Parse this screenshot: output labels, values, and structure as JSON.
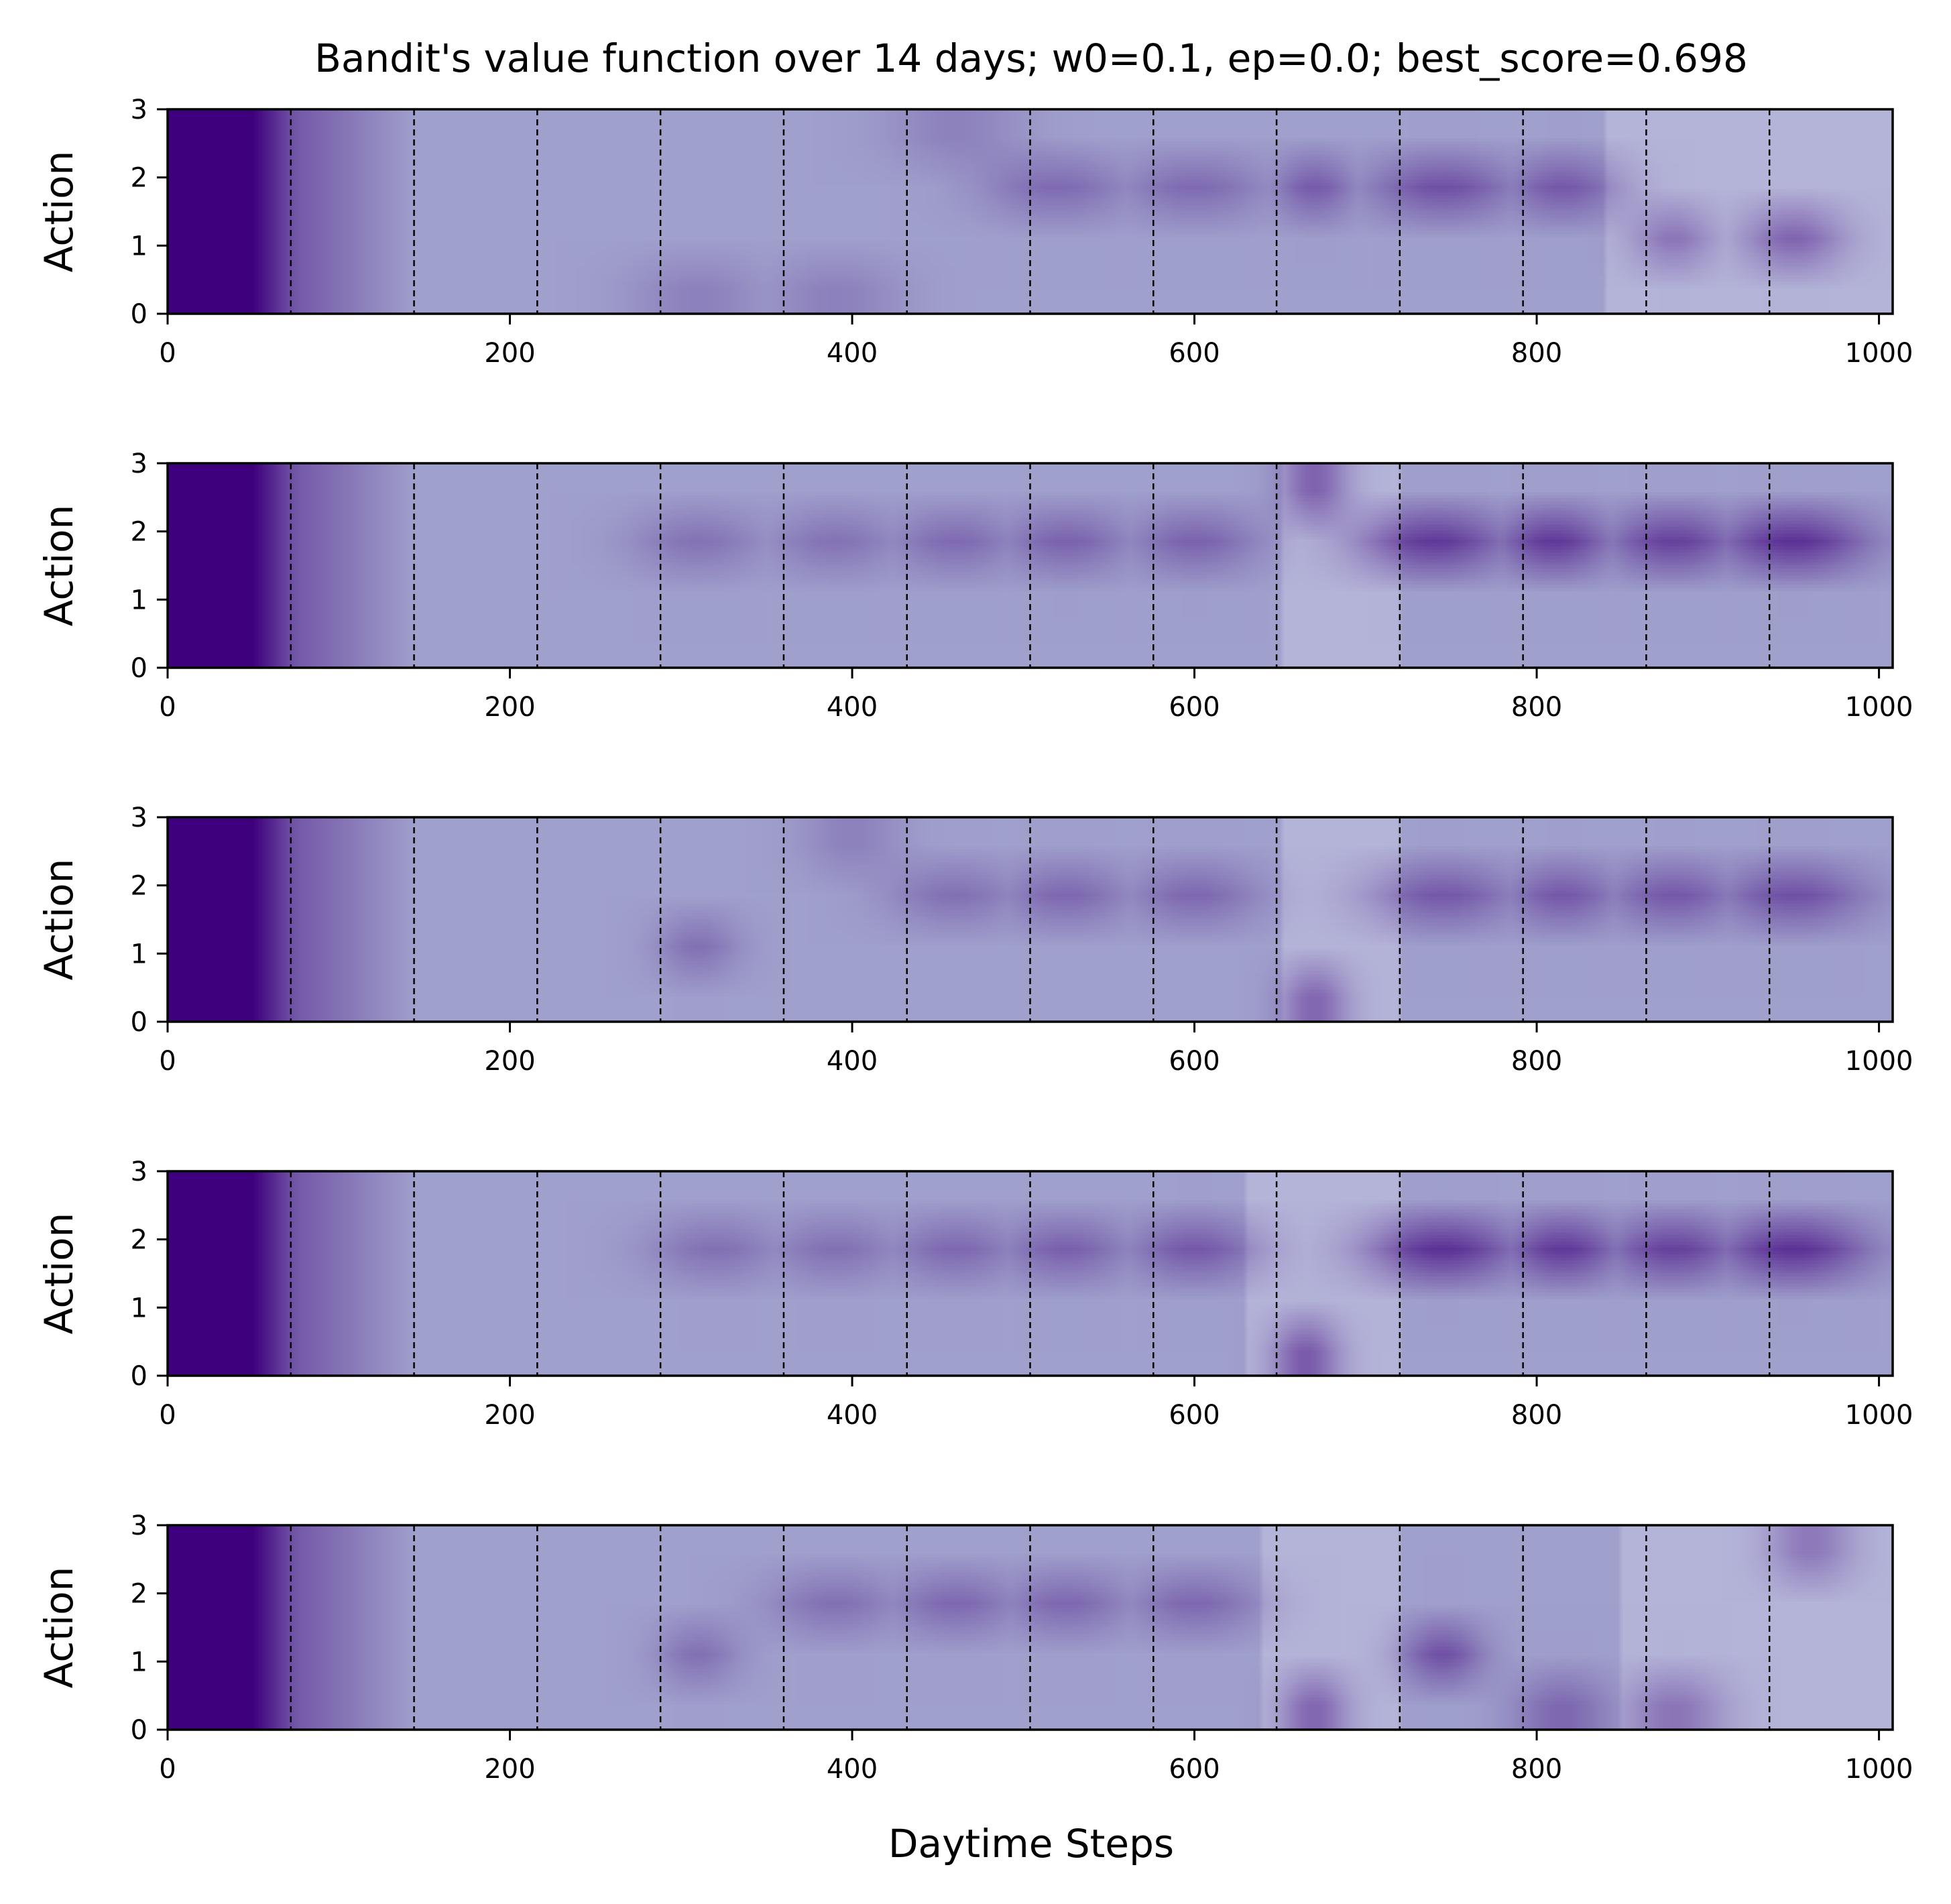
{
  "chart_data": {
    "type": "heatmap",
    "title": "Bandit's value function over 14 days; w0=0.1, ep=0.0; best_score=0.698",
    "xlabel": "Daytime Steps",
    "ylabel": "Action",
    "xlim": [
      0,
      1008
    ],
    "ylim": [
      0,
      3
    ],
    "xticks": [
      0,
      200,
      400,
      600,
      800,
      1000
    ],
    "yticks": [
      0,
      1,
      2,
      3
    ],
    "day_boundaries": [
      72,
      144,
      216,
      288,
      360,
      432,
      504,
      576,
      648,
      720,
      792,
      864,
      936
    ],
    "colormap": "Purples",
    "colors": {
      "dark": "#3f007d",
      "base": "#a0a0cc",
      "light": "#b4b4d8",
      "boundary": "#000000"
    },
    "panels": [
      {
        "name": "panel-1",
        "blobs": [
          [
            520,
            1.8,
            45,
            0.35,
            0.35
          ],
          [
            600,
            1.8,
            45,
            0.35,
            0.35
          ],
          [
            670,
            1.8,
            25,
            0.35,
            0.45
          ],
          [
            745,
            1.85,
            45,
            0.35,
            0.5
          ],
          [
            815,
            1.85,
            35,
            0.35,
            0.45
          ],
          [
            880,
            1.1,
            25,
            0.35,
            0.35
          ],
          [
            950,
            1.1,
            30,
            0.35,
            0.45
          ],
          [
            310,
            0.3,
            40,
            0.4,
            0.2
          ],
          [
            390,
            0.3,
            40,
            0.4,
            0.2
          ],
          [
            460,
            2.7,
            40,
            0.3,
            0.2
          ]
        ],
        "light_regions": [
          [
            840,
            1008
          ]
        ]
      },
      {
        "name": "panel-2",
        "blobs": [
          [
            310,
            1.8,
            40,
            0.35,
            0.3
          ],
          [
            390,
            1.8,
            40,
            0.35,
            0.3
          ],
          [
            460,
            1.8,
            40,
            0.35,
            0.35
          ],
          [
            525,
            1.8,
            40,
            0.35,
            0.4
          ],
          [
            600,
            1.8,
            40,
            0.35,
            0.4
          ],
          [
            670,
            2.6,
            20,
            0.35,
            0.45
          ],
          [
            740,
            1.85,
            45,
            0.35,
            0.65
          ],
          [
            810,
            1.85,
            35,
            0.35,
            0.65
          ],
          [
            880,
            1.85,
            40,
            0.35,
            0.6
          ],
          [
            950,
            1.85,
            45,
            0.35,
            0.7
          ]
        ],
        "light_regions": [
          [
            650,
            720
          ]
        ]
      },
      {
        "name": "panel-3",
        "blobs": [
          [
            460,
            1.9,
            40,
            0.35,
            0.3
          ],
          [
            525,
            1.9,
            40,
            0.35,
            0.35
          ],
          [
            600,
            1.9,
            40,
            0.35,
            0.35
          ],
          [
            310,
            1.1,
            25,
            0.35,
            0.3
          ],
          [
            670,
            0.3,
            20,
            0.35,
            0.45
          ],
          [
            745,
            1.85,
            45,
            0.35,
            0.45
          ],
          [
            815,
            1.85,
            35,
            0.35,
            0.45
          ],
          [
            880,
            1.85,
            40,
            0.35,
            0.45
          ],
          [
            950,
            1.85,
            45,
            0.35,
            0.5
          ],
          [
            400,
            2.7,
            30,
            0.3,
            0.2
          ]
        ],
        "light_regions": [
          [
            650,
            720
          ]
        ]
      },
      {
        "name": "panel-4",
        "blobs": [
          [
            320,
            1.85,
            40,
            0.35,
            0.3
          ],
          [
            390,
            1.85,
            40,
            0.35,
            0.3
          ],
          [
            460,
            1.85,
            40,
            0.35,
            0.35
          ],
          [
            525,
            1.85,
            40,
            0.35,
            0.4
          ],
          [
            600,
            1.85,
            40,
            0.35,
            0.45
          ],
          [
            665,
            0.4,
            20,
            0.35,
            0.5
          ],
          [
            745,
            1.85,
            45,
            0.35,
            0.7
          ],
          [
            815,
            1.85,
            35,
            0.35,
            0.65
          ],
          [
            880,
            1.85,
            40,
            0.35,
            0.6
          ],
          [
            950,
            1.85,
            45,
            0.35,
            0.7
          ]
        ],
        "light_regions": [
          [
            630,
            720
          ]
        ]
      },
      {
        "name": "panel-5",
        "blobs": [
          [
            390,
            1.85,
            40,
            0.35,
            0.3
          ],
          [
            460,
            1.85,
            40,
            0.35,
            0.35
          ],
          [
            525,
            1.85,
            40,
            0.35,
            0.35
          ],
          [
            600,
            1.85,
            40,
            0.35,
            0.35
          ],
          [
            310,
            1.1,
            25,
            0.35,
            0.3
          ],
          [
            670,
            0.3,
            20,
            0.35,
            0.45
          ],
          [
            745,
            1.1,
            25,
            0.35,
            0.5
          ],
          [
            815,
            0.4,
            30,
            0.4,
            0.35
          ],
          [
            880,
            0.4,
            30,
            0.4,
            0.35
          ],
          [
            960,
            2.7,
            25,
            0.3,
            0.35
          ]
        ],
        "light_regions": [
          [
            640,
            720
          ],
          [
            850,
            1008
          ]
        ]
      }
    ]
  }
}
